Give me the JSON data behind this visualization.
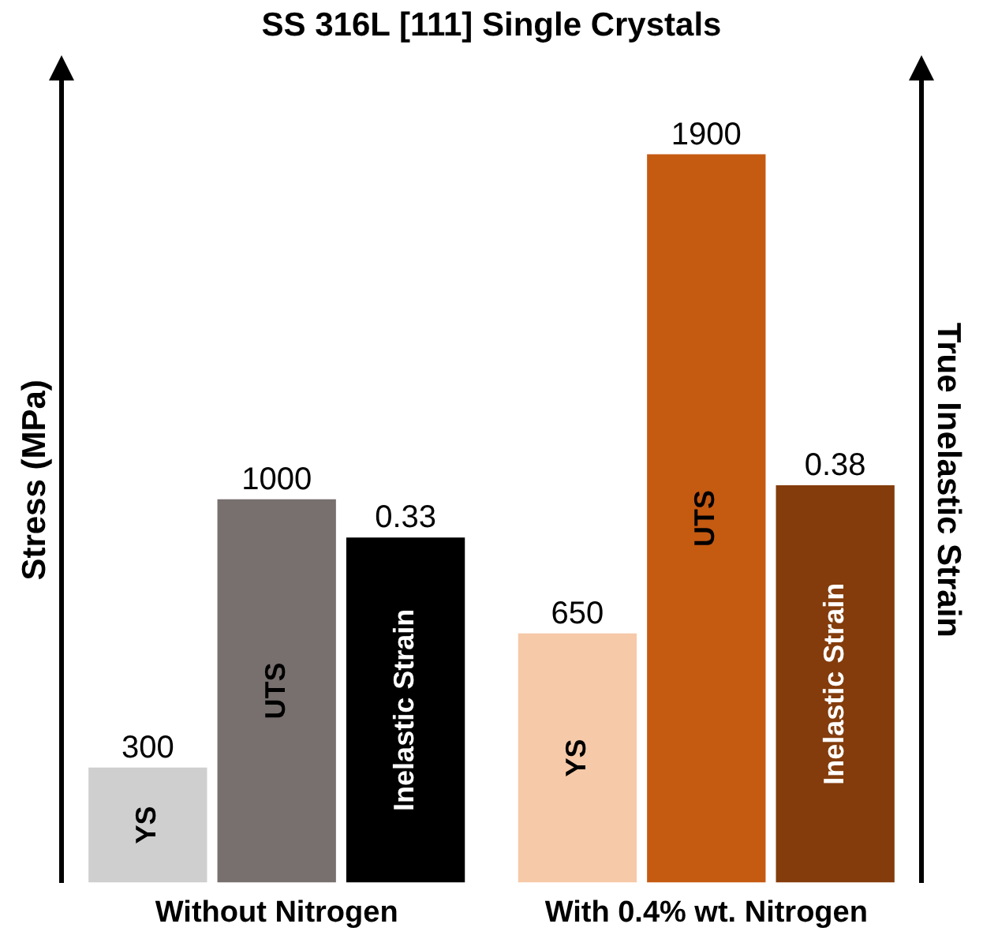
{
  "chart_data": {
    "type": "bar",
    "title": "SS 316L [111] Single Crystals",
    "ylabel": "Stress (MPa)",
    "y2label": "True Inelastic Strain",
    "categories": [
      "Without Nitrogen",
      "With 0.4% wt. Nitrogen"
    ],
    "series": [
      {
        "name": "YS",
        "colors": [
          "#d0cfcf",
          "#f6c9a8"
        ],
        "values": [
          300,
          650
        ]
      },
      {
        "name": "UTS",
        "colors": [
          "#77706f",
          "#c55a11"
        ],
        "values": [
          1000,
          1900
        ]
      },
      {
        "name": "Inelastic Strain",
        "colors": [
          "#000000",
          "#843c0c"
        ],
        "values": [
          0.33,
          0.38
        ],
        "axis": "y2"
      }
    ],
    "ylim": [
      0,
      2100
    ],
    "y2lim": [
      0,
      0.77
    ],
    "tick_labels": "x",
    "data_labels": true,
    "legend": false,
    "grid": false
  }
}
